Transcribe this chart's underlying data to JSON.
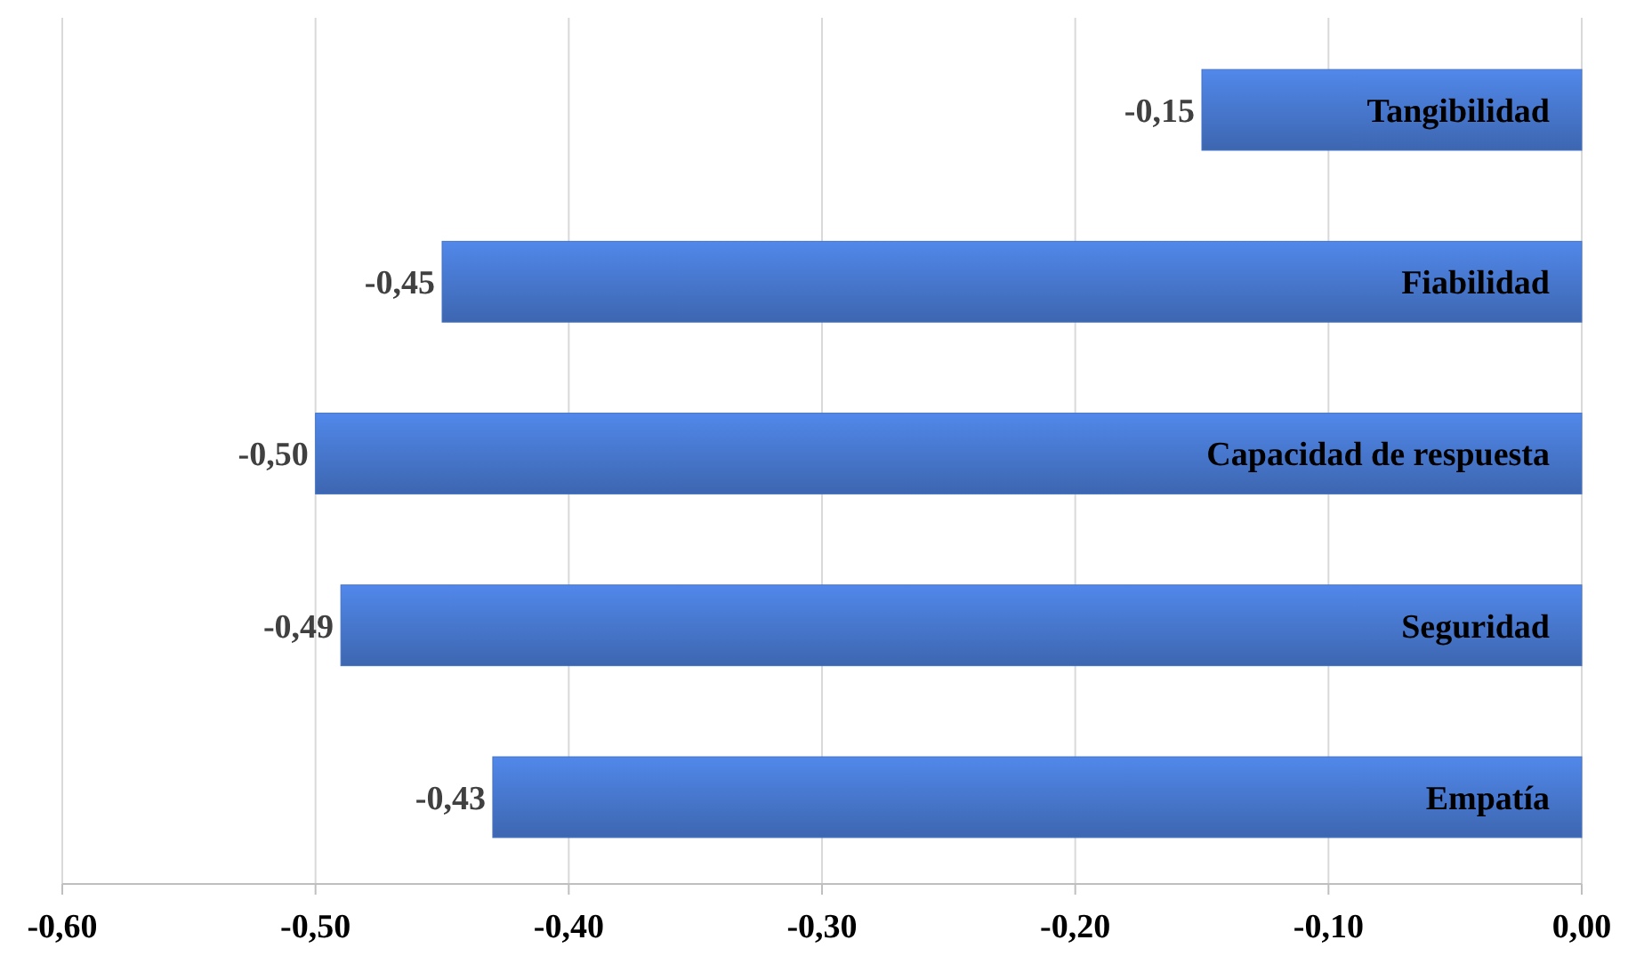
{
  "chart_data": {
    "type": "bar",
    "orientation": "horizontal",
    "categories": [
      "Tangibilidad",
      "Fiabilidad",
      "Capacidad de respuesta",
      "Seguridad",
      "Empatía"
    ],
    "values": [
      -0.15,
      -0.45,
      -0.5,
      -0.49,
      -0.43
    ],
    "value_labels": [
      "-0,15",
      "-0,45",
      "-0,50",
      "-0,49",
      "-0,43"
    ],
    "color": "#4472c4",
    "xlim": [
      -0.6,
      0
    ],
    "xticks": [
      {
        "value": -0.6,
        "label": "-0,60"
      },
      {
        "value": -0.5,
        "label": "-0,50"
      },
      {
        "value": -0.4,
        "label": "-0,40"
      },
      {
        "value": -0.3,
        "label": "-0,30"
      },
      {
        "value": -0.2,
        "label": "-0,20"
      },
      {
        "value": -0.1,
        "label": "-0,10"
      },
      {
        "value": 0,
        "label": "0,00"
      }
    ],
    "grid": "x"
  }
}
